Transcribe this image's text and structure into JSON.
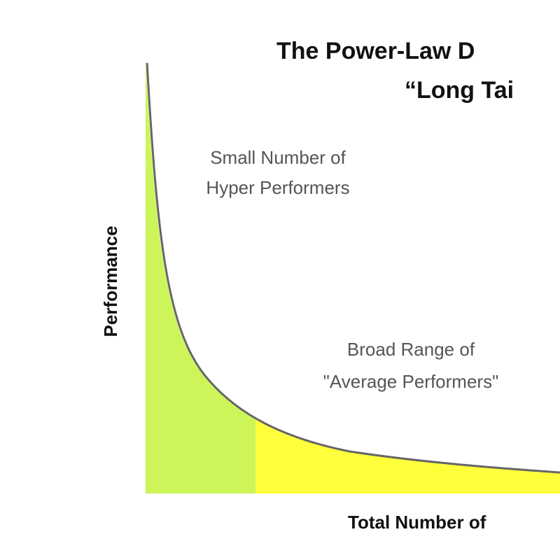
{
  "title": {
    "line1": "The Power-Law D",
    "line2": "“Long Tai"
  },
  "annotations": {
    "hyper": [
      "Small Number of",
      "Hyper Performers"
    ],
    "average": [
      "Broad Range of",
      "\"Average Performers\""
    ]
  },
  "axes": {
    "y_label": "Performance",
    "x_label": "Total Number of"
  }
}
